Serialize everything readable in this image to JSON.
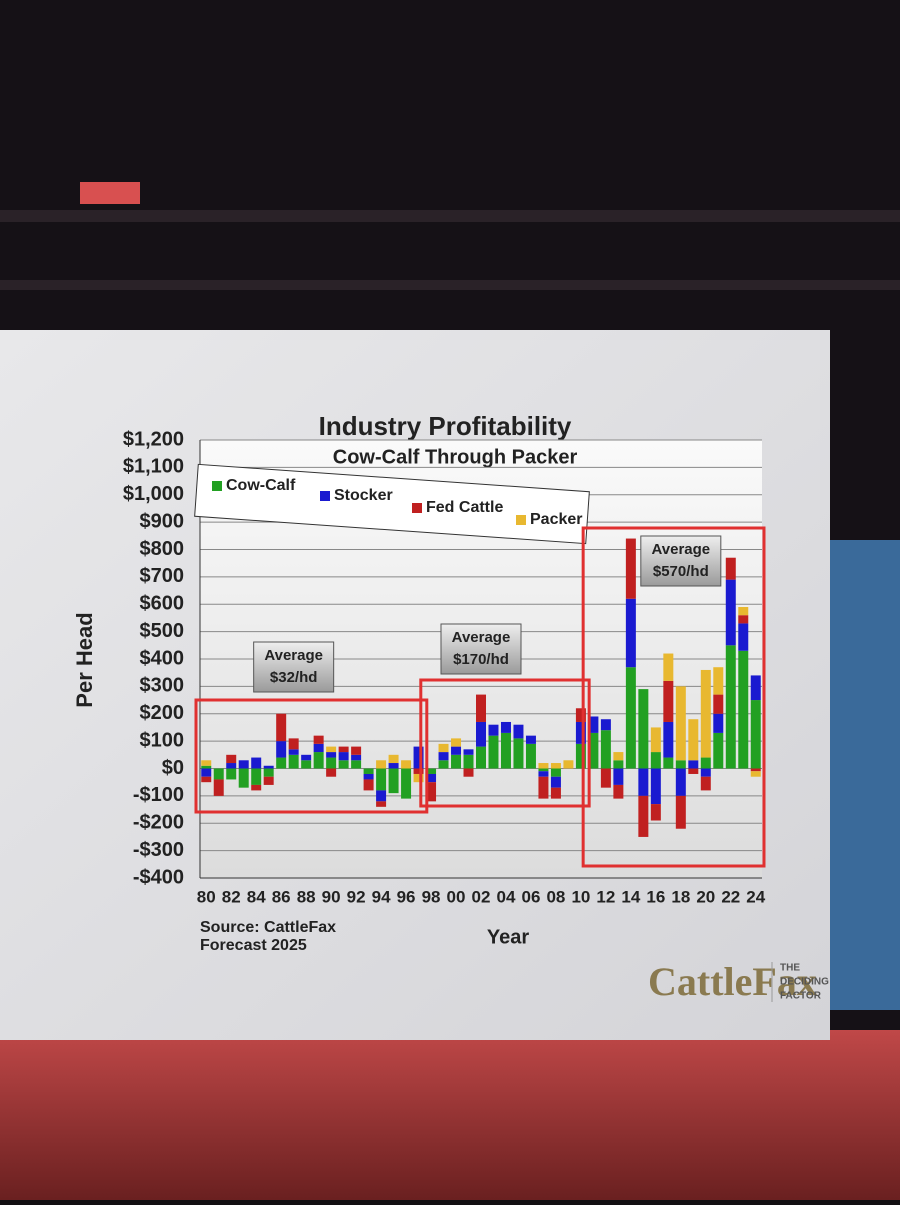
{
  "chart_data": {
    "type": "stacked-bar",
    "title": "Industry Profitability",
    "subtitle": "Cow-Calf Through Packer",
    "y_label": "Per Head",
    "x_label": "Year",
    "source": "Source: CattleFax",
    "note": "Forecast 2025",
    "logo": "CattleFax",
    "tagline": [
      "THE",
      "DECIDING",
      "FACTOR"
    ],
    "categories": [
      "80",
      null,
      "82",
      null,
      "84",
      null,
      "86",
      null,
      "88",
      null,
      "90",
      null,
      "92",
      null,
      "94",
      null,
      "96",
      null,
      "98",
      null,
      "00",
      null,
      "02",
      null,
      "04",
      null,
      "06",
      null,
      "08",
      null,
      "10",
      null,
      "12",
      null,
      "14",
      null,
      "16",
      null,
      "18",
      null,
      "20",
      null,
      "22",
      null,
      "24"
    ],
    "series": [
      {
        "name": "Cow-Calf",
        "color": "#22a022",
        "values": [
          10,
          -40,
          -40,
          -70,
          -60,
          -30,
          40,
          50,
          30,
          60,
          40,
          30,
          30,
          -20,
          -80,
          -90,
          -110,
          0,
          -20,
          30,
          50,
          50,
          80,
          120,
          130,
          110,
          90,
          -10,
          -30,
          0,
          90,
          130,
          140,
          30,
          370,
          290,
          60,
          40,
          30,
          0,
          40,
          130,
          450,
          430,
          250
        ]
      },
      {
        "name": "Stocker",
        "color": "#1a1ad0",
        "values": [
          -30,
          0,
          20,
          30,
          40,
          10,
          60,
          20,
          20,
          30,
          20,
          30,
          20,
          -20,
          -40,
          20,
          0,
          80,
          -30,
          30,
          30,
          20,
          90,
          40,
          40,
          50,
          30,
          -20,
          -40,
          0,
          80,
          60,
          40,
          -60,
          250,
          -100,
          -130,
          130,
          -100,
          30,
          -30,
          70,
          240,
          100,
          90
        ]
      },
      {
        "name": "Fed Cattle",
        "color": "#c02020",
        "values": [
          -20,
          -60,
          30,
          0,
          -20,
          -30,
          100,
          40,
          0,
          30,
          -30,
          20,
          30,
          -40,
          -20,
          0,
          0,
          -20,
          -70,
          0,
          0,
          -30,
          100,
          0,
          0,
          0,
          0,
          -80,
          -40,
          0,
          50,
          0,
          -70,
          -50,
          220,
          -150,
          -60,
          150,
          -120,
          -20,
          -50,
          70,
          80,
          30,
          -10
        ]
      },
      {
        "name": "Packer",
        "color": "#e8b830",
        "values": [
          20,
          0,
          0,
          0,
          0,
          0,
          0,
          0,
          0,
          0,
          20,
          0,
          0,
          0,
          30,
          30,
          30,
          -30,
          0,
          30,
          30,
          0,
          0,
          0,
          0,
          0,
          0,
          20,
          20,
          30,
          0,
          0,
          0,
          30,
          0,
          0,
          90,
          100,
          270,
          150,
          320,
          100,
          0,
          30,
          -20
        ]
      }
    ],
    "annotations": [
      [
        "Average",
        "$32/hd"
      ],
      [
        "Average",
        "$170/hd"
      ],
      [
        "Average",
        "$570/hd"
      ]
    ],
    "ylim": [
      -400,
      1200
    ],
    "yticks": [
      {
        "value": -400,
        "label": "-$400"
      },
      {
        "value": -300,
        "label": "-$300"
      },
      {
        "value": -200,
        "label": "-$200"
      },
      {
        "value": -100,
        "label": "-$100"
      },
      {
        "value": 0,
        "label": "$0"
      },
      {
        "value": 100,
        "label": "$100"
      },
      {
        "value": 200,
        "label": "$200"
      },
      {
        "value": 300,
        "label": "$300"
      },
      {
        "value": 400,
        "label": "$400"
      },
      {
        "value": 500,
        "label": "$500"
      },
      {
        "value": 600,
        "label": "$600"
      },
      {
        "value": 700,
        "label": "$700"
      },
      {
        "value": 800,
        "label": "$800"
      },
      {
        "value": 900,
        "label": "$900"
      },
      {
        "value": 1000,
        "label": "$1,000"
      },
      {
        "value": 1100,
        "label": "$1,100"
      },
      {
        "value": 1200,
        "label": "$1,200"
      }
    ],
    "grid": true,
    "legend": "top-left"
  }
}
